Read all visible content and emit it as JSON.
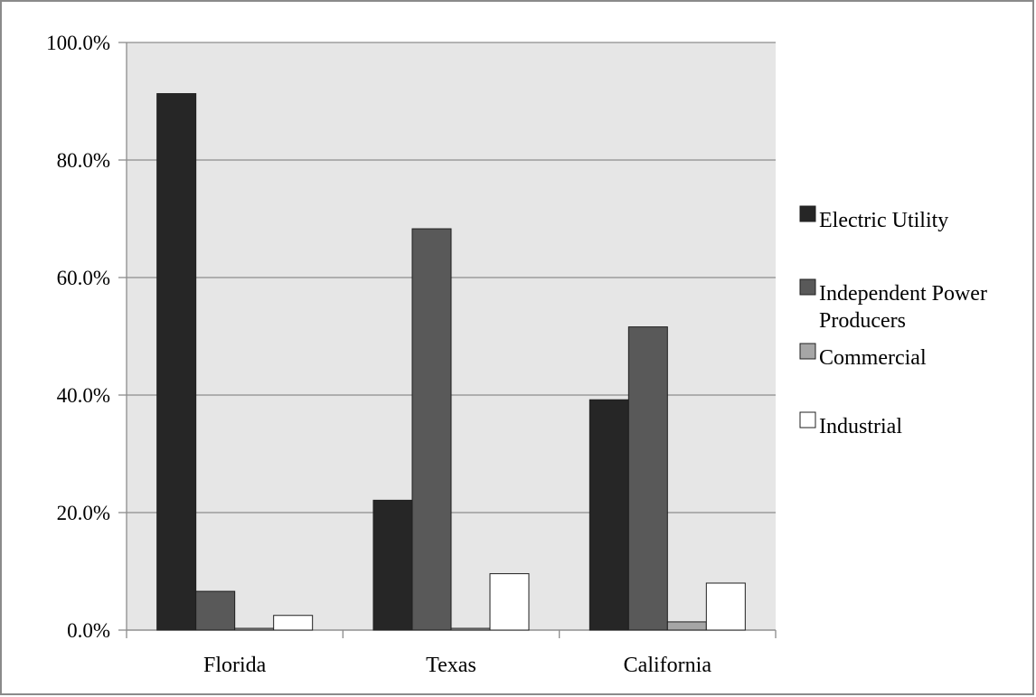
{
  "chart_data": {
    "type": "bar",
    "title": "",
    "xlabel": "",
    "ylabel": "",
    "categories": [
      "Florida",
      "Texas",
      "California"
    ],
    "series": [
      {
        "name": "Electric Utility",
        "color": "#262626",
        "values": [
          91.3,
          22.1,
          39.2
        ]
      },
      {
        "name": "Independent Power Producers",
        "color": "#595959",
        "values": [
          6.6,
          68.3,
          51.6
        ]
      },
      {
        "name": "Commercial",
        "color": "#a6a6a6",
        "values": [
          0.3,
          0.3,
          1.4
        ]
      },
      {
        "name": "Industrial",
        "color": "#ffffff",
        "values": [
          2.5,
          9.6,
          8.0
        ]
      }
    ],
    "ylim": [
      0,
      100
    ],
    "yticks": [
      "0.0%",
      "20.0%",
      "40.0%",
      "60.0%",
      "80.0%",
      "100.0%"
    ],
    "ytick_values": [
      0,
      20,
      40,
      60,
      80,
      100
    ],
    "grid": true,
    "plot_background": "#e6e6e6",
    "legend_position": "right"
  }
}
